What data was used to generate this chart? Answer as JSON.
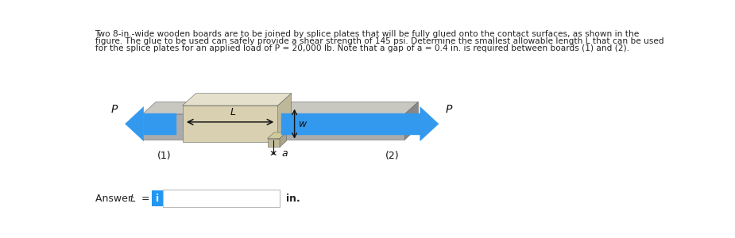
{
  "title_line1": "Two 8-in.-wide wooden boards are to be joined by splice plates that will be fully glued onto the contact surfaces, as shown in the",
  "title_line2": "figure. The glue to be used can safely provide a shear strength of 145 psi. Determine the smallest allowable length L that can be used",
  "title_line3": "for the splice plates for an applied load of P = 20,000 lb. Note that a gap of a = 0.4 in. is required between boards (1) and (2).",
  "label_1": "(1)",
  "label_2": "(2)",
  "label_P": "P",
  "label_L": "L",
  "label_w": "w",
  "label_a": "a",
  "board_face": "#ABABAB",
  "board_top": "#C8C8C0",
  "board_side": "#888888",
  "splice_face": "#D8D0B0",
  "splice_top": "#E5E0CC",
  "splice_side": "#BEB89A",
  "gap_piece_face": "#C0BA98",
  "gap_piece_top": "#D0CA9A",
  "arrow_blue": "#3399EE",
  "bg_color": "#ffffff",
  "text_color": "#222222",
  "info_blue": "#2196F3",
  "input_border": "#bbbbbb",
  "anno_color": "#111111"
}
